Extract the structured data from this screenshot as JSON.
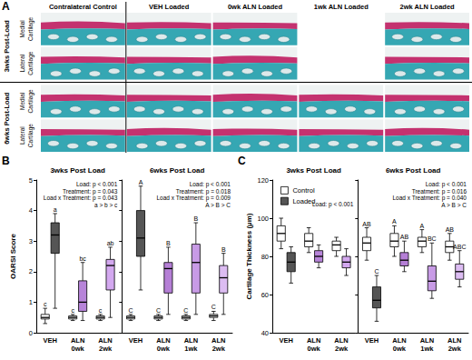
{
  "panel_A": {
    "label": "A",
    "columns": [
      "Contralateral Control",
      "VEH Loaded",
      "0wk ALN Loaded",
      "1wk ALN Loaded",
      "2wk ALN Loaded"
    ],
    "groups": [
      {
        "title": "3wks Post-Load",
        "rows": [
          "Medial Cartilage",
          "Lateral Cartilage"
        ],
        "has_image": [
          true,
          true,
          true,
          false,
          true
        ]
      },
      {
        "title": "6wks Post-Load",
        "rows": [
          "Medial Cartilage",
          "Lateral Cartilage"
        ],
        "has_image": [
          true,
          true,
          true,
          true,
          true
        ]
      }
    ]
  },
  "chart_data": [
    {
      "type": "boxplot",
      "title": "B",
      "ylabel": "OARSI Score",
      "ylim": [
        0,
        5
      ],
      "yticks": [
        0,
        1,
        2,
        3,
        4,
        5
      ],
      "grid": false,
      "panels": [
        {
          "title": "3wks Post Load",
          "categories": [
            "VEH",
            "ALN\n0wk",
            "ALN\n2wk"
          ],
          "annotations": [
            "Load: p < 0.001",
            "Treatment: p = 0.043",
            "Load x Treatment: p = 0.043",
            "a > b > c"
          ],
          "series": [
            {
              "color": "#ffffff",
              "values": [
                [
                  0.3,
                  0.45,
                  0.5,
                  0.6,
                  0.8
                ],
                [
                  0.4,
                  0.45,
                  0.5,
                  0.55,
                  0.6
                ],
                [
                  0.4,
                  0.45,
                  0.5,
                  0.55,
                  0.6
                ]
              ],
              "letters": [
                "c",
                "c",
                "c"
              ]
            },
            {
              "colors": [
                "#555555",
                "#b784d9",
                "#d3a8ef"
              ],
              "values": [
                [
                  0.8,
                  2.6,
                  3.2,
                  3.6,
                  3.9
                ],
                [
                  0.4,
                  0.7,
                  1.0,
                  1.7,
                  2.3
                ],
                [
                  0.5,
                  1.4,
                  2.2,
                  2.4,
                  2.8
                ]
              ],
              "letters": [
                "a",
                "bc",
                "ab"
              ]
            }
          ]
        },
        {
          "title": "6wks Post Load",
          "categories": [
            "VEH",
            "ALN\n0wk",
            "ALN\n1wk",
            "ALN\n2wk"
          ],
          "annotations": [
            "Load: p < 0.001",
            "Treatment: p = 0.018",
            "Load x Treatment: p = 0.009",
            "A > B > C"
          ],
          "series": [
            {
              "color": "#ffffff",
              "values": [
                [
                  0.4,
                  0.45,
                  0.5,
                  0.55,
                  0.6
                ],
                [
                  0.4,
                  0.45,
                  0.5,
                  0.55,
                  0.6
                ],
                [
                  0.4,
                  0.45,
                  0.5,
                  0.55,
                  0.6
                ],
                [
                  0.4,
                  0.5,
                  0.55,
                  0.6,
                  0.7
                ]
              ],
              "letters": [
                "C",
                "C",
                "C",
                "C"
              ]
            },
            {
              "colors": [
                "#555555",
                "#b57fd6",
                "#c89be6",
                "#dcbcf2"
              ],
              "values": [
                [
                  1.4,
                  2.5,
                  3.1,
                  4.0,
                  4.8
                ],
                [
                  0.6,
                  1.3,
                  2.1,
                  2.3,
                  2.8
                ],
                [
                  0.6,
                  1.3,
                  2.3,
                  2.9,
                  3.6
                ],
                [
                  0.6,
                  1.3,
                  1.8,
                  2.2,
                  2.6
                ]
              ],
              "letters": [
                "A",
                "B",
                "B",
                "B"
              ]
            }
          ]
        }
      ]
    },
    {
      "type": "boxplot",
      "title": "C",
      "ylabel": "Cartilage Thickness (µm)",
      "ylim": [
        40,
        120
      ],
      "yticks": [
        40,
        60,
        80,
        100,
        120
      ],
      "grid": false,
      "legend": "upper left",
      "panels": [
        {
          "title": "3wks Post Load",
          "categories": [
            "VEH",
            "ALN\n0wk",
            "ALN\n2wk"
          ],
          "annotations": [
            "Load: p < 0.001"
          ],
          "series": [
            {
              "name": "Control",
              "color": "#ffffff",
              "values": [
                [
                  84,
                  88,
                  92,
                  96,
                  100
                ],
                [
                  82,
                  85,
                  88,
                  92,
                  95
                ],
                [
                  80,
                  83,
                  86,
                  88,
                  90
                ]
              ]
            },
            {
              "name": "Loaded",
              "colors": [
                "#555555",
                "#b784d9",
                "#d3a8ef"
              ],
              "values": [
                [
                  66,
                  72,
                  77,
                  82,
                  85
                ],
                [
                  74,
                  77,
                  80,
                  83,
                  86
                ],
                [
                  70,
                  74,
                  77,
                  80,
                  84
                ]
              ]
            }
          ]
        },
        {
          "title": "6wks Post Load",
          "categories": [
            "VEH",
            "ALN\n0wk",
            "ALN\n1wk",
            "ALN\n2wk"
          ],
          "annotations": [
            "Load: p < 0.001",
            "Treatment: p = 0.016",
            "Load x Treatment: p = 0.040",
            "A > B > C"
          ],
          "series": [
            {
              "name": "Control",
              "color": "#ffffff",
              "values": [
                [
                  78,
                  83,
                  87,
                  90,
                  95
                ],
                [
                  80,
                  85,
                  88,
                  92,
                  96
                ],
                [
                  82,
                  85,
                  88,
                  90,
                  94
                ],
                [
                  78,
                  82,
                  85,
                  88,
                  92
                ]
              ],
              "letters": [
                "AB",
                "A",
                "A",
                "AB"
              ]
            },
            {
              "name": "Loaded",
              "colors": [
                "#555555",
                "#b57fd6",
                "#c89be6",
                "#dcbcf2"
              ],
              "values": [
                [
                  46,
                  53,
                  57,
                  64,
                  70
                ],
                [
                  72,
                  75,
                  78,
                  82,
                  88
                ],
                [
                  58,
                  62,
                  67,
                  75,
                  87
                ],
                [
                  64,
                  68,
                  72,
                  76,
                  83
                ]
              ],
              "letters": [
                "C",
                "AB",
                "BC",
                "ABC"
              ]
            }
          ]
        }
      ]
    }
  ]
}
